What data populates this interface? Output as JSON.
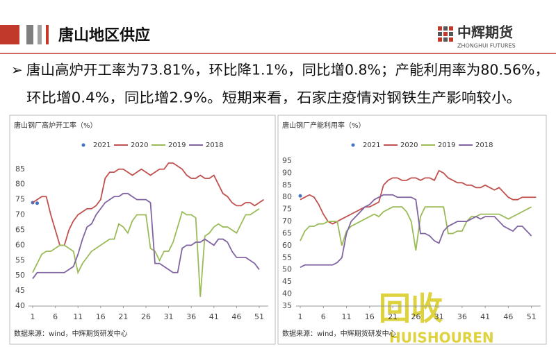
{
  "header": {
    "title": "唐山地区供应",
    "logo": "中辉期货",
    "logo_en": "ZHONGHUI FUTURES"
  },
  "bullet": {
    "lines": [
      "唐山高炉开工率为73.81%，环比降1.1%，同比增0.8%；产能利用率为80.56%，",
      "环比增0.4%，同比增2.9%。短期来看，石家庄疫情对钢铁生产影响较小。"
    ]
  },
  "watermark": {
    "text": "回收",
    "text_en": "HUISHOUREN"
  },
  "chart_data": [
    {
      "type": "line",
      "title": "唐山钢厂高炉开工率（%）",
      "source": "数据来源：wind，中辉期货研发中心",
      "x": [
        1,
        2,
        3,
        4,
        5,
        6,
        7,
        8,
        9,
        10,
        11,
        12,
        13,
        14,
        15,
        16,
        17,
        18,
        19,
        20,
        21,
        22,
        23,
        24,
        25,
        26,
        27,
        28,
        29,
        30,
        31,
        32,
        33,
        34,
        35,
        36,
        37,
        38,
        39,
        40,
        41,
        42,
        43,
        44,
        45,
        46,
        47,
        48,
        49,
        50,
        51,
        52
      ],
      "xlim": [
        1,
        53
      ],
      "xticks": [
        1,
        6,
        11,
        16,
        21,
        26,
        31,
        36,
        41,
        46,
        51
      ],
      "ylim": [
        40,
        87
      ],
      "yticks": [
        40,
        45,
        50,
        55,
        60,
        65,
        70,
        75,
        80,
        85
      ],
      "legend": "top",
      "series": [
        {
          "name": "2021",
          "color": "#4472c4",
          "marker": true,
          "values": [
            74,
            73.81,
            null,
            null,
            null,
            null,
            null,
            null,
            null,
            null,
            null,
            null,
            null,
            null,
            null,
            null,
            null,
            null,
            null,
            null,
            null,
            null,
            null,
            null,
            null,
            null,
            null,
            null,
            null,
            null,
            null,
            null,
            null,
            null,
            null,
            null,
            null,
            null,
            null,
            null,
            null,
            null,
            null,
            null,
            null,
            null,
            null,
            null,
            null,
            null,
            null,
            null
          ]
        },
        {
          "name": "2020",
          "color": "#c0504d",
          "values": [
            74,
            75,
            76,
            76,
            70,
            65,
            60,
            60,
            65,
            68,
            70,
            71,
            72,
            72,
            73,
            75,
            82,
            84,
            84,
            85,
            85,
            84,
            83,
            84,
            85,
            84,
            83,
            84,
            85,
            85,
            87,
            87,
            86,
            85,
            83,
            82,
            82,
            83,
            82,
            82,
            83,
            80,
            77,
            76,
            74,
            73,
            73,
            74,
            74,
            73,
            74,
            75
          ]
        },
        {
          "name": "2019",
          "color": "#9bbb59",
          "values": [
            51,
            54,
            57,
            58,
            58,
            59,
            60,
            60,
            59,
            58,
            51,
            54,
            56,
            58,
            59,
            60,
            61,
            62,
            62,
            67,
            66,
            64,
            68,
            70,
            70,
            70,
            59,
            58,
            55,
            58,
            58,
            61,
            66,
            71,
            70,
            70,
            69,
            43,
            63,
            64,
            66,
            67,
            66,
            66,
            65,
            64,
            67,
            70,
            70,
            71,
            72,
            null
          ]
        },
        {
          "name": "2018",
          "color": "#8064a2",
          "values": [
            49,
            51,
            51,
            51,
            51,
            51,
            51,
            51,
            52,
            53,
            57,
            62,
            66,
            67,
            70,
            72,
            74,
            75,
            76,
            76,
            77,
            77,
            76,
            75,
            75,
            75,
            74,
            54,
            54,
            53,
            52,
            51,
            51,
            59,
            60,
            60,
            61,
            61,
            62,
            61,
            60,
            62,
            62,
            61,
            58,
            56,
            56,
            56,
            55,
            54,
            52,
            null
          ]
        }
      ]
    },
    {
      "type": "line",
      "title": "唐山钢厂产能利用率（%）",
      "source": "数据来源：wind，中辉期货研发中心",
      "x": [
        1,
        2,
        3,
        4,
        5,
        6,
        7,
        8,
        9,
        10,
        11,
        12,
        13,
        14,
        15,
        16,
        17,
        18,
        19,
        20,
        21,
        22,
        23,
        24,
        25,
        26,
        27,
        28,
        29,
        30,
        31,
        32,
        33,
        34,
        35,
        36,
        37,
        38,
        39,
        40,
        41,
        42,
        43,
        44,
        45,
        46,
        47,
        48,
        49,
        50,
        51,
        52
      ],
      "xlim": [
        1,
        53
      ],
      "xticks": [
        1,
        6,
        11,
        16,
        21,
        26,
        31,
        36,
        41,
        46,
        51
      ],
      "ylim": [
        35,
        97
      ],
      "yticks": [
        35,
        40,
        45,
        50,
        55,
        60,
        65,
        70,
        75,
        80,
        85,
        90,
        95
      ],
      "legend": "top",
      "series": [
        {
          "name": "2021",
          "color": "#4472c4",
          "marker": true,
          "values": [
            80.56,
            null,
            null,
            null,
            null,
            null,
            null,
            null,
            null,
            null,
            null,
            null,
            null,
            null,
            null,
            null,
            null,
            null,
            null,
            null,
            null,
            null,
            null,
            null,
            null,
            null,
            null,
            null,
            null,
            null,
            null,
            null,
            null,
            null,
            null,
            null,
            null,
            null,
            null,
            null,
            null,
            null,
            null,
            null,
            null,
            null,
            null,
            null,
            null,
            null,
            null,
            null
          ]
        },
        {
          "name": "2020",
          "color": "#c0504d",
          "values": [
            79,
            80,
            81,
            80,
            77,
            73,
            70,
            69,
            70,
            71,
            72,
            73,
            74,
            75,
            76,
            76,
            77,
            78,
            85,
            87,
            88,
            88,
            87,
            87,
            88,
            88,
            87,
            88,
            88,
            87,
            91,
            90,
            88,
            87,
            86,
            86,
            85,
            85,
            84,
            84,
            85,
            84,
            83,
            84,
            82,
            80,
            79,
            79,
            80,
            80,
            80,
            80
          ]
        },
        {
          "name": "2019",
          "color": "#9bbb59",
          "values": [
            62,
            66,
            68,
            68,
            69,
            69,
            70,
            70,
            70,
            60,
            66,
            68,
            69,
            70,
            71,
            72,
            73,
            72,
            74,
            75,
            76,
            76,
            76,
            74,
            70,
            58,
            72,
            76,
            76,
            76,
            76,
            76,
            65,
            65,
            66,
            66,
            70,
            72,
            72,
            73,
            73,
            73,
            73,
            73,
            72,
            71,
            72,
            73,
            74,
            75,
            76,
            null
          ]
        },
        {
          "name": "2018",
          "color": "#8064a2",
          "values": [
            51,
            52,
            52,
            52,
            52,
            52,
            52,
            52,
            53,
            55,
            65,
            70,
            72,
            74,
            76,
            77,
            79,
            80,
            81,
            81,
            81,
            80,
            80,
            80,
            80,
            79,
            65,
            65,
            64,
            62,
            61,
            66,
            68,
            69,
            70,
            70,
            70,
            71,
            72,
            71,
            72,
            72,
            72,
            70,
            68,
            67,
            66,
            68,
            68,
            66,
            64,
            null
          ]
        }
      ]
    }
  ]
}
